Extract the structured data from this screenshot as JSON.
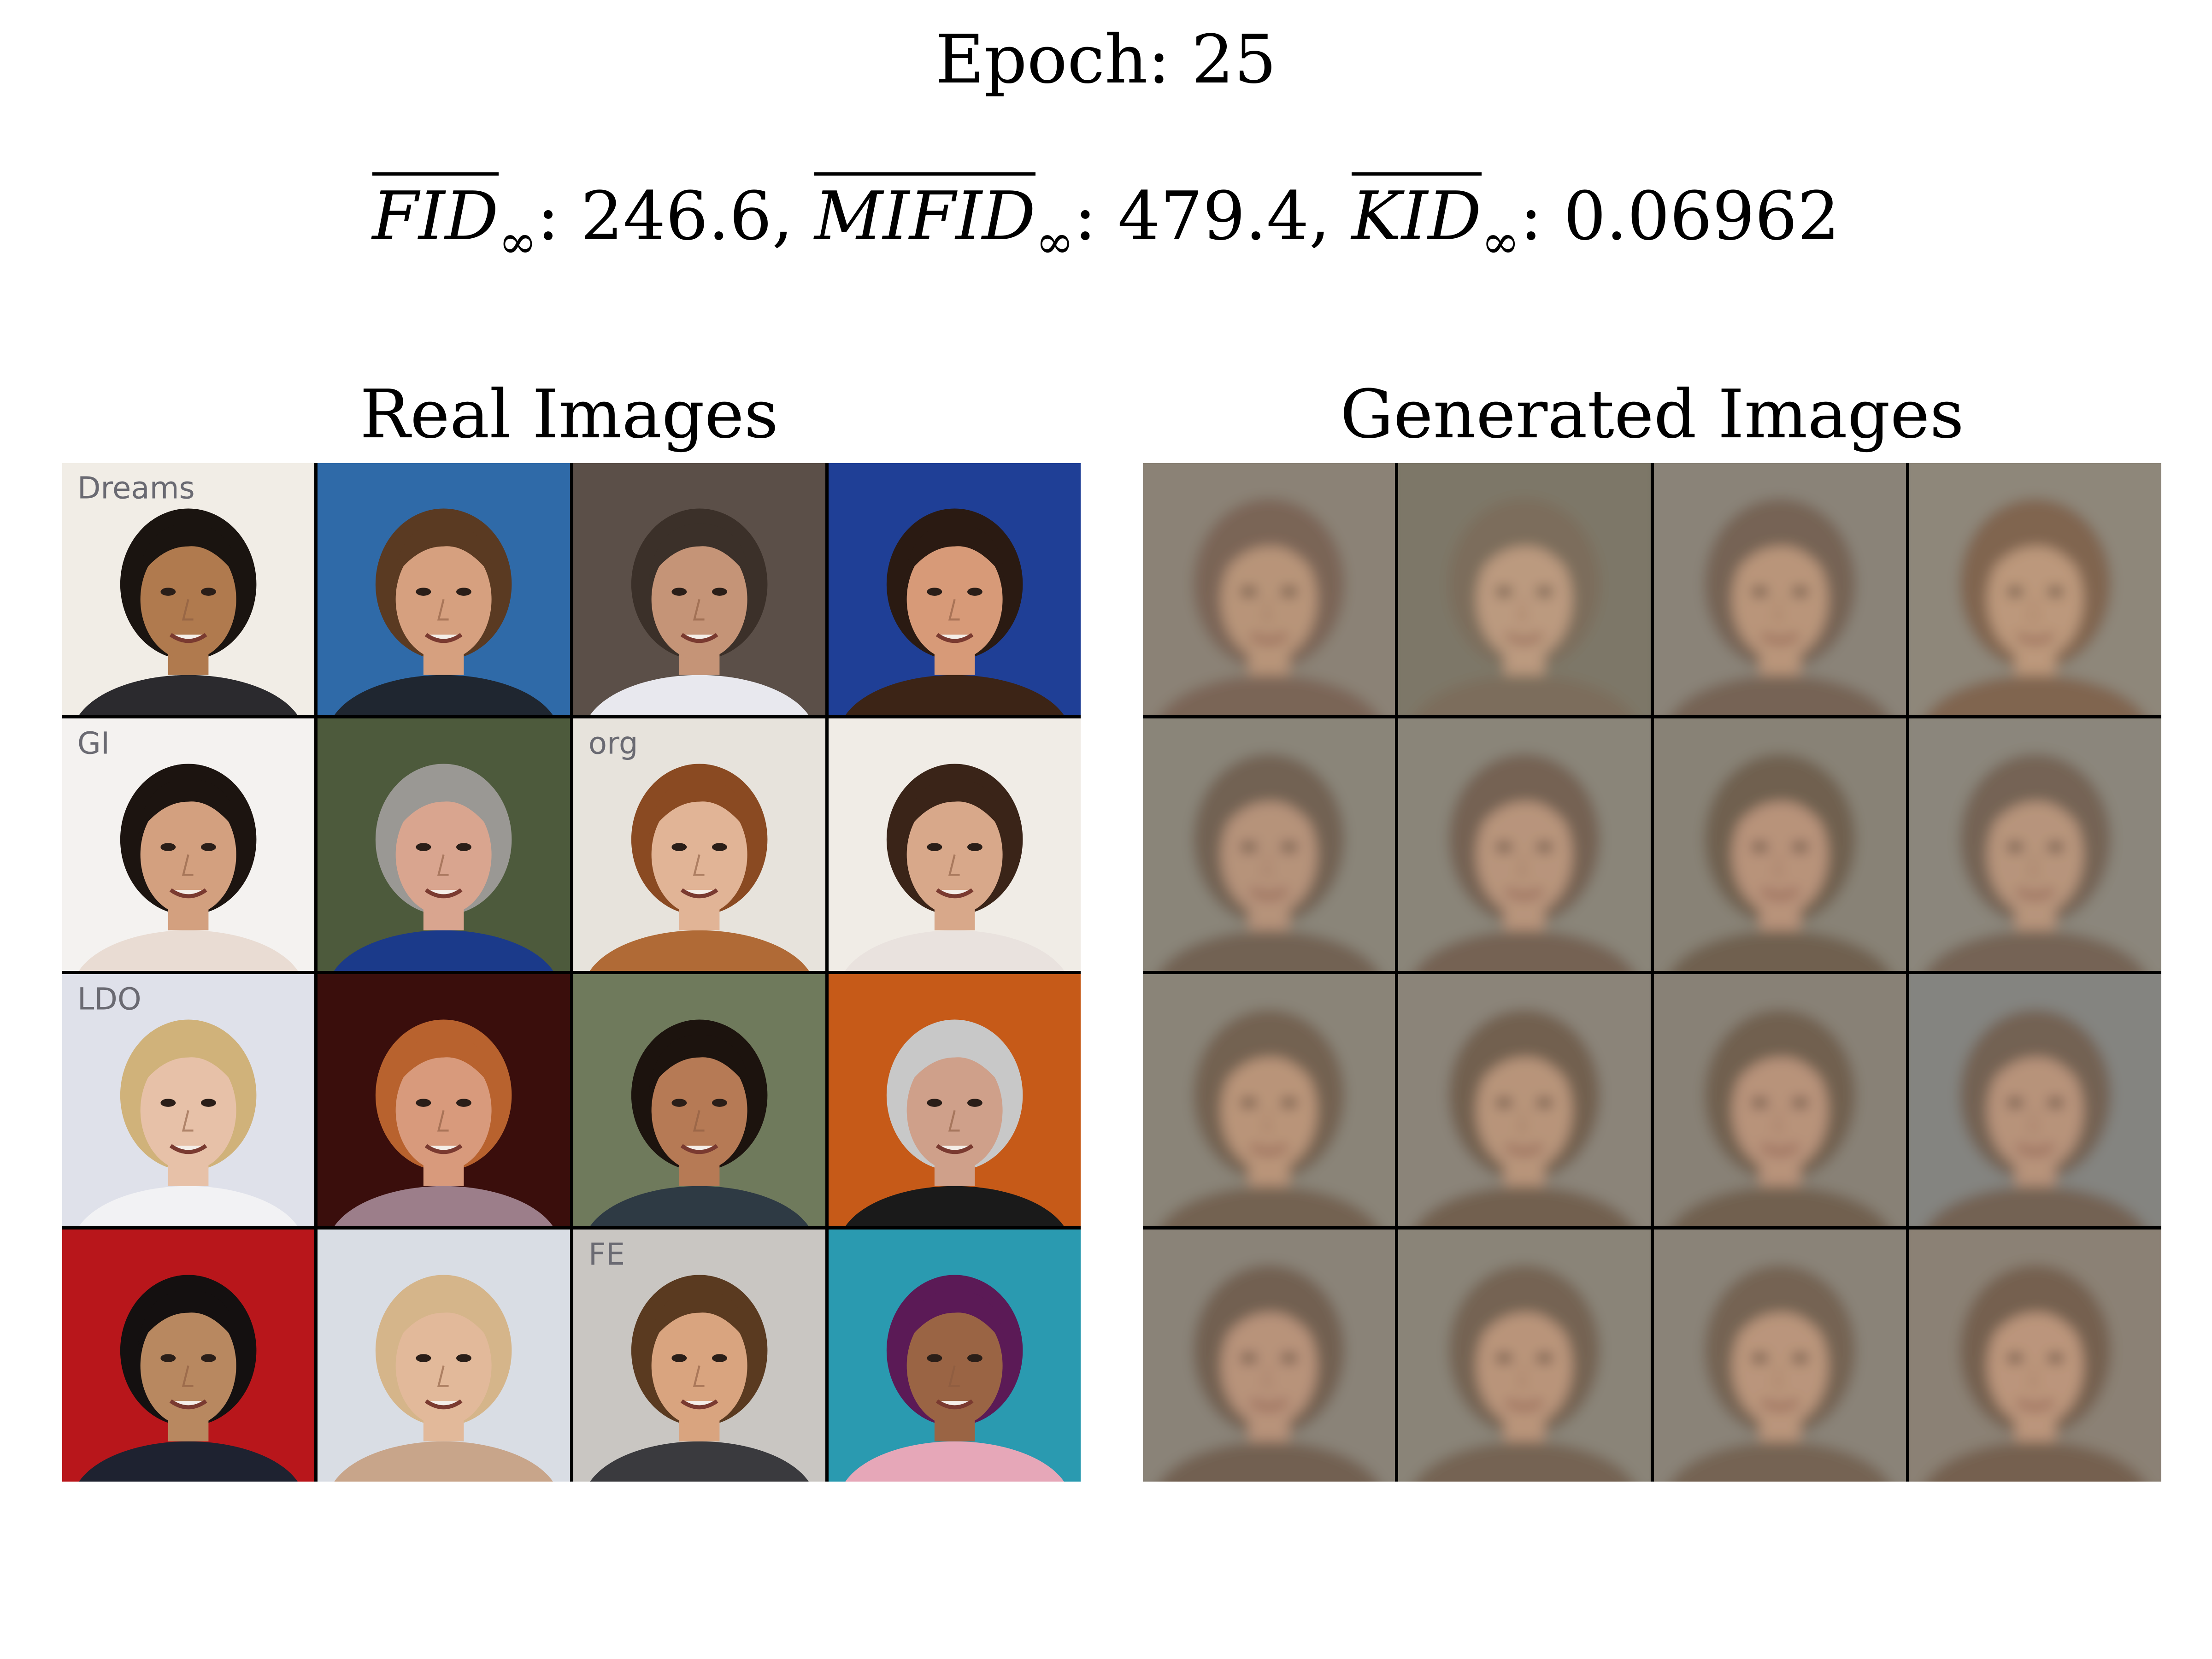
{
  "header": {
    "epoch_label": "Epoch: 25"
  },
  "metrics": {
    "fid_name": "FID",
    "fid_value": ": 246.6,",
    "mifid_name": "MIFID",
    "mifid_value": ": 479.4,",
    "kid_name": "KID",
    "kid_value": ": 0.06962",
    "subscript": "∞"
  },
  "panels": {
    "real_title": "Real Images",
    "generated_title": "Generated Images"
  },
  "real_images": [
    {
      "bg": "#f1ede6",
      "skin": "#b07a4e",
      "hair": "#1a1410",
      "shirt": "#2b2a2e",
      "text": "Dreams"
    },
    {
      "bg": "#2f6aa8",
      "skin": "#d6a07f",
      "hair": "#5a3a22",
      "shirt": "#1f2630",
      "text": ""
    },
    {
      "bg": "#5b4f48",
      "skin": "#c59477",
      "hair": "#3b3029",
      "shirt": "#e8e8ee",
      "text": ""
    },
    {
      "bg": "#1f3f96",
      "skin": "#d79a78",
      "hair": "#2a1a12",
      "shirt": "#3c2416",
      "text": ""
    },
    {
      "bg": "#f4f2f0",
      "skin": "#d3a07f",
      "hair": "#1c1410",
      "shirt": "#e9dcd3",
      "text": "GI"
    },
    {
      "bg": "#4d5a3c",
      "skin": "#d9a58f",
      "hair": "#9a9894",
      "shirt": "#1b3a8a",
      "text": ""
    },
    {
      "bg": "#e7e3dc",
      "skin": "#e1b496",
      "hair": "#8a4a22",
      "shirt": "#b06a36",
      "text": "org"
    },
    {
      "bg": "#f0ece6",
      "skin": "#d8a88a",
      "hair": "#3a2418",
      "shirt": "#e9e2de",
      "text": ""
    },
    {
      "bg": "#dfe1ea",
      "skin": "#e7c1a8",
      "hair": "#d0b27a",
      "shirt": "#f2f2f4",
      "text": "LDO"
    },
    {
      "bg": "#3a0e0c",
      "skin": "#d89a7c",
      "hair": "#b8622e",
      "shirt": "#9c7e8a",
      "text": ""
    },
    {
      "bg": "#6f7a5c",
      "skin": "#b67a55",
      "hair": "#1c130e",
      "shirt": "#2e3a44",
      "text": ""
    },
    {
      "bg": "#c65a18",
      "skin": "#cfa08a",
      "hair": "#c8c8c8",
      "shirt": "#1a1a1a",
      "text": ""
    },
    {
      "bg": "#b8161b",
      "skin": "#b88860",
      "hair": "#141010",
      "shirt": "#1e2230",
      "text": ""
    },
    {
      "bg": "#d9dde4",
      "skin": "#e2b99a",
      "hair": "#d5b58a",
      "shirt": "#c8a58a",
      "text": ""
    },
    {
      "bg": "#c9c6c2",
      "skin": "#d9a47f",
      "hair": "#5a3a20",
      "shirt": "#3a3a3e",
      "text": "FE"
    },
    {
      "bg": "#2a9ab0",
      "skin": "#9a6444",
      "hair": "#5b1a56",
      "shirt": "#e6a7b8",
      "text": ""
    }
  ],
  "generated_images": [
    {
      "bg": "#8b8276",
      "skin": "#b89479",
      "hair": "#7a6556"
    },
    {
      "bg": "#7d7768",
      "skin": "#bb9a7f",
      "hair": "#7b6d5c"
    },
    {
      "bg": "#8a8378",
      "skin": "#b9957a",
      "hair": "#766454"
    },
    {
      "bg": "#8e877a",
      "skin": "#bc987c",
      "hair": "#806550"
    },
    {
      "bg": "#8a8579",
      "skin": "#b6937a",
      "hair": "#726252"
    },
    {
      "bg": "#8a8579",
      "skin": "#b8947b",
      "hair": "#746252"
    },
    {
      "bg": "#888276",
      "skin": "#b8937a",
      "hair": "#70604f"
    },
    {
      "bg": "#8b867b",
      "skin": "#b7947c",
      "hair": "#746454"
    },
    {
      "bg": "#8a8478",
      "skin": "#b99479",
      "hair": "#736251"
    },
    {
      "bg": "#8b8479",
      "skin": "#b8947a",
      "hair": "#726150"
    },
    {
      "bg": "#888176",
      "skin": "#b8937a",
      "hair": "#716050"
    },
    {
      "bg": "#848480",
      "skin": "#b7937a",
      "hair": "#736252"
    },
    {
      "bg": "#8a8378",
      "skin": "#b8937a",
      "hair": "#726151"
    },
    {
      "bg": "#8a8478",
      "skin": "#b9947a",
      "hair": "#746352"
    },
    {
      "bg": "#8a8378",
      "skin": "#ba957b",
      "hair": "#756352"
    },
    {
      "bg": "#8b8174",
      "skin": "#bb957b",
      "hair": "#756050"
    }
  ]
}
